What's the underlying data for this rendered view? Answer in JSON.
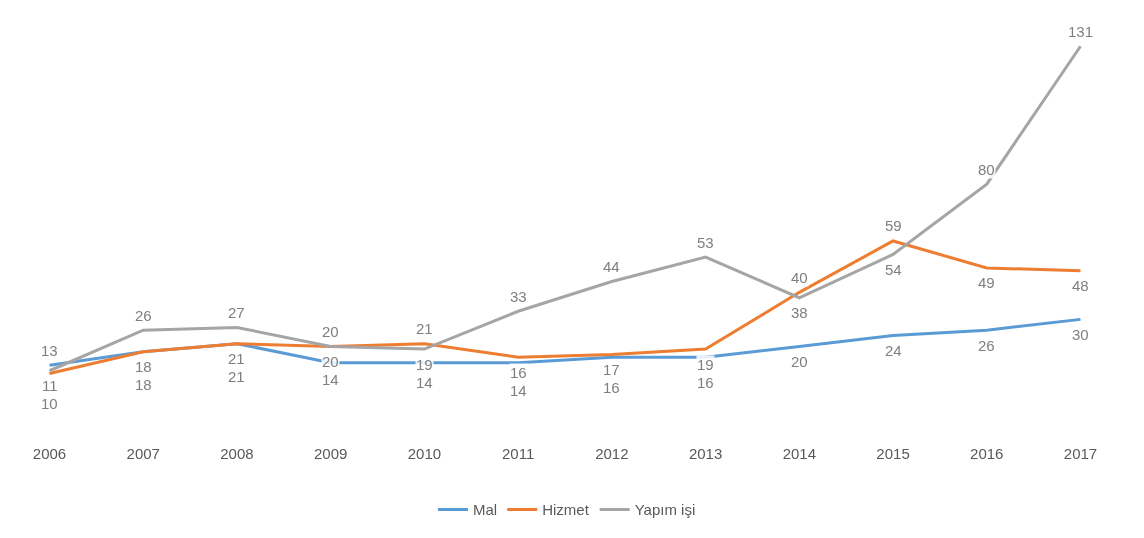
{
  "chart_data": {
    "type": "line",
    "categories": [
      "2006",
      "2007",
      "2008",
      "2009",
      "2010",
      "2011",
      "2012",
      "2013",
      "2014",
      "2015",
      "2016",
      "2017"
    ],
    "series": [
      {
        "name": "Mal",
        "color": "#5b9bd5",
        "values": [
          13,
          18,
          21,
          14,
          14,
          14,
          16,
          16,
          20,
          24,
          26,
          30
        ]
      },
      {
        "name": "Hizmet",
        "color": "#ed7d31",
        "values": [
          10,
          18,
          21,
          20,
          21,
          16,
          17,
          19,
          40,
          59,
          49,
          48
        ]
      },
      {
        "name": "Yapım işi",
        "color": "#a5a5a5",
        "values": [
          11,
          26,
          27,
          20,
          19,
          33,
          44,
          53,
          38,
          54,
          80,
          131
        ]
      }
    ],
    "data_labels": true,
    "legend": "bottom",
    "tick_labels": "x",
    "marker": "none",
    "line_style": "solid"
  }
}
